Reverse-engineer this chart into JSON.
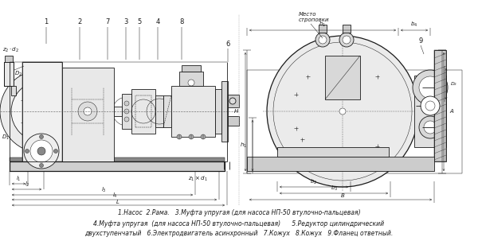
{
  "bg_color": "#ffffff",
  "fig_width": 6.0,
  "fig_height": 3.03,
  "dpi": 100,
  "lc": "#1a1a1a",
  "lw": 0.6,
  "tlw": 0.35,
  "caption_lines": [
    "1.Насос  2.Рама.   3.Муфта упругая (для насоса НП-50 втулочно-пальцевая)",
    "4.Муфта упругая  (для насоса НП-50 втулочно-пальцевая)      5.Редуктор цилиндрический",
    "двухступенчатый   6.Электродвигатель асинхронный   7.Кожух   8.Кожух   9.Фланец ответный."
  ],
  "caption_fontsize": 5.5,
  "label_fs": 6.0,
  "small_fs": 5.0
}
